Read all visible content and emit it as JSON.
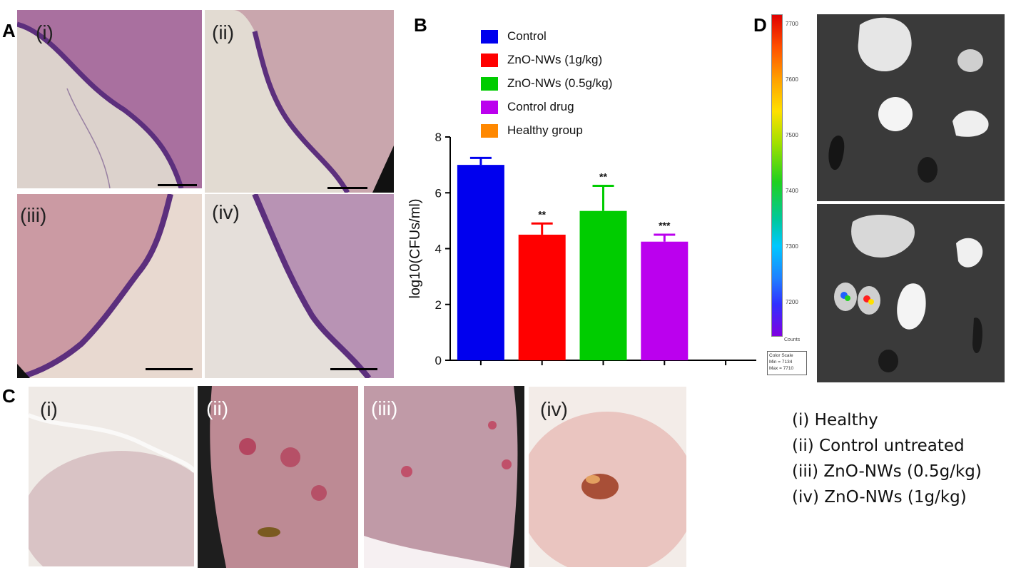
{
  "panel_labels": {
    "a": "A",
    "b": "B",
    "c": "C",
    "d": "D"
  },
  "histology": [
    {
      "label": "(i)",
      "colors": {
        "tissue": "#a9709f",
        "background": "#dcd2cc",
        "edge": "#5c2f7d"
      }
    },
    {
      "label": "(ii)",
      "colors": {
        "tissue": "#c9a6ad",
        "background": "#e2dbd2",
        "edge": "#5c2f7d"
      }
    },
    {
      "label": "(iii)",
      "colors": {
        "tissue": "#cb9aa3",
        "background": "#e8d9d0",
        "edge": "#5c2f7d"
      }
    },
    {
      "label": "(iv)",
      "colors": {
        "tissue": "#b893b4",
        "background": "#e5dfda",
        "edge": "#5c2f7d"
      }
    }
  ],
  "photos": [
    {
      "label": "(i)",
      "label_color": "dark",
      "colors": {
        "base": "#d9c3c5",
        "fur": "#efeae6"
      }
    },
    {
      "label": "(ii)",
      "label_color": "light",
      "colors": {
        "base": "#bd8a94",
        "fur": "#1e1e1e"
      }
    },
    {
      "label": "(iii)",
      "label_color": "light",
      "colors": {
        "base": "#c09aa7",
        "fur": "#1c1c1c"
      }
    },
    {
      "label": "(iv)",
      "label_color": "dark",
      "colors": {
        "base": "#eac5c0",
        "fur": "#f3ece8"
      }
    }
  ],
  "chart_data": {
    "type": "bar",
    "categories": [
      "Control",
      "ZnO-NWs (1g/kg)",
      "ZnO-NWs (0.5g/kg)",
      "Control drug",
      "Healthy group"
    ],
    "series": [
      {
        "values": [
          7.0,
          4.5,
          5.35,
          4.25,
          0
        ],
        "errors": [
          0.25,
          0.4,
          0.9,
          0.25,
          0
        ],
        "significance": [
          "",
          "**",
          "**",
          "***",
          ""
        ]
      }
    ],
    "colors": [
      "#0000ee",
      "#ff0000",
      "#00cc00",
      "#bb00ee",
      "#ff8800"
    ],
    "ylabel": "log10(CFUs/ml)",
    "xlabel": "",
    "ylim": [
      0,
      8
    ],
    "yticks": [
      "0",
      "2",
      "4",
      "6",
      "8"
    ],
    "legend_position": "top",
    "grid": false
  },
  "colorbar": {
    "ticks": [
      "7700",
      "7600",
      "7500",
      "7400",
      "7300",
      "7200"
    ],
    "counts_label": "Counts",
    "scale_title": "Color Scale",
    "min_label": "Min = 7134",
    "max_label": "Max = 7710",
    "min": 7134,
    "max": 7710
  },
  "photo_legend": [
    "(i) Healthy",
    "(ii) Control untreated",
    "(iii) ZnO-NWs (0.5g/kg)",
    "(iv) ZnO-NWs (1g/kg)"
  ]
}
